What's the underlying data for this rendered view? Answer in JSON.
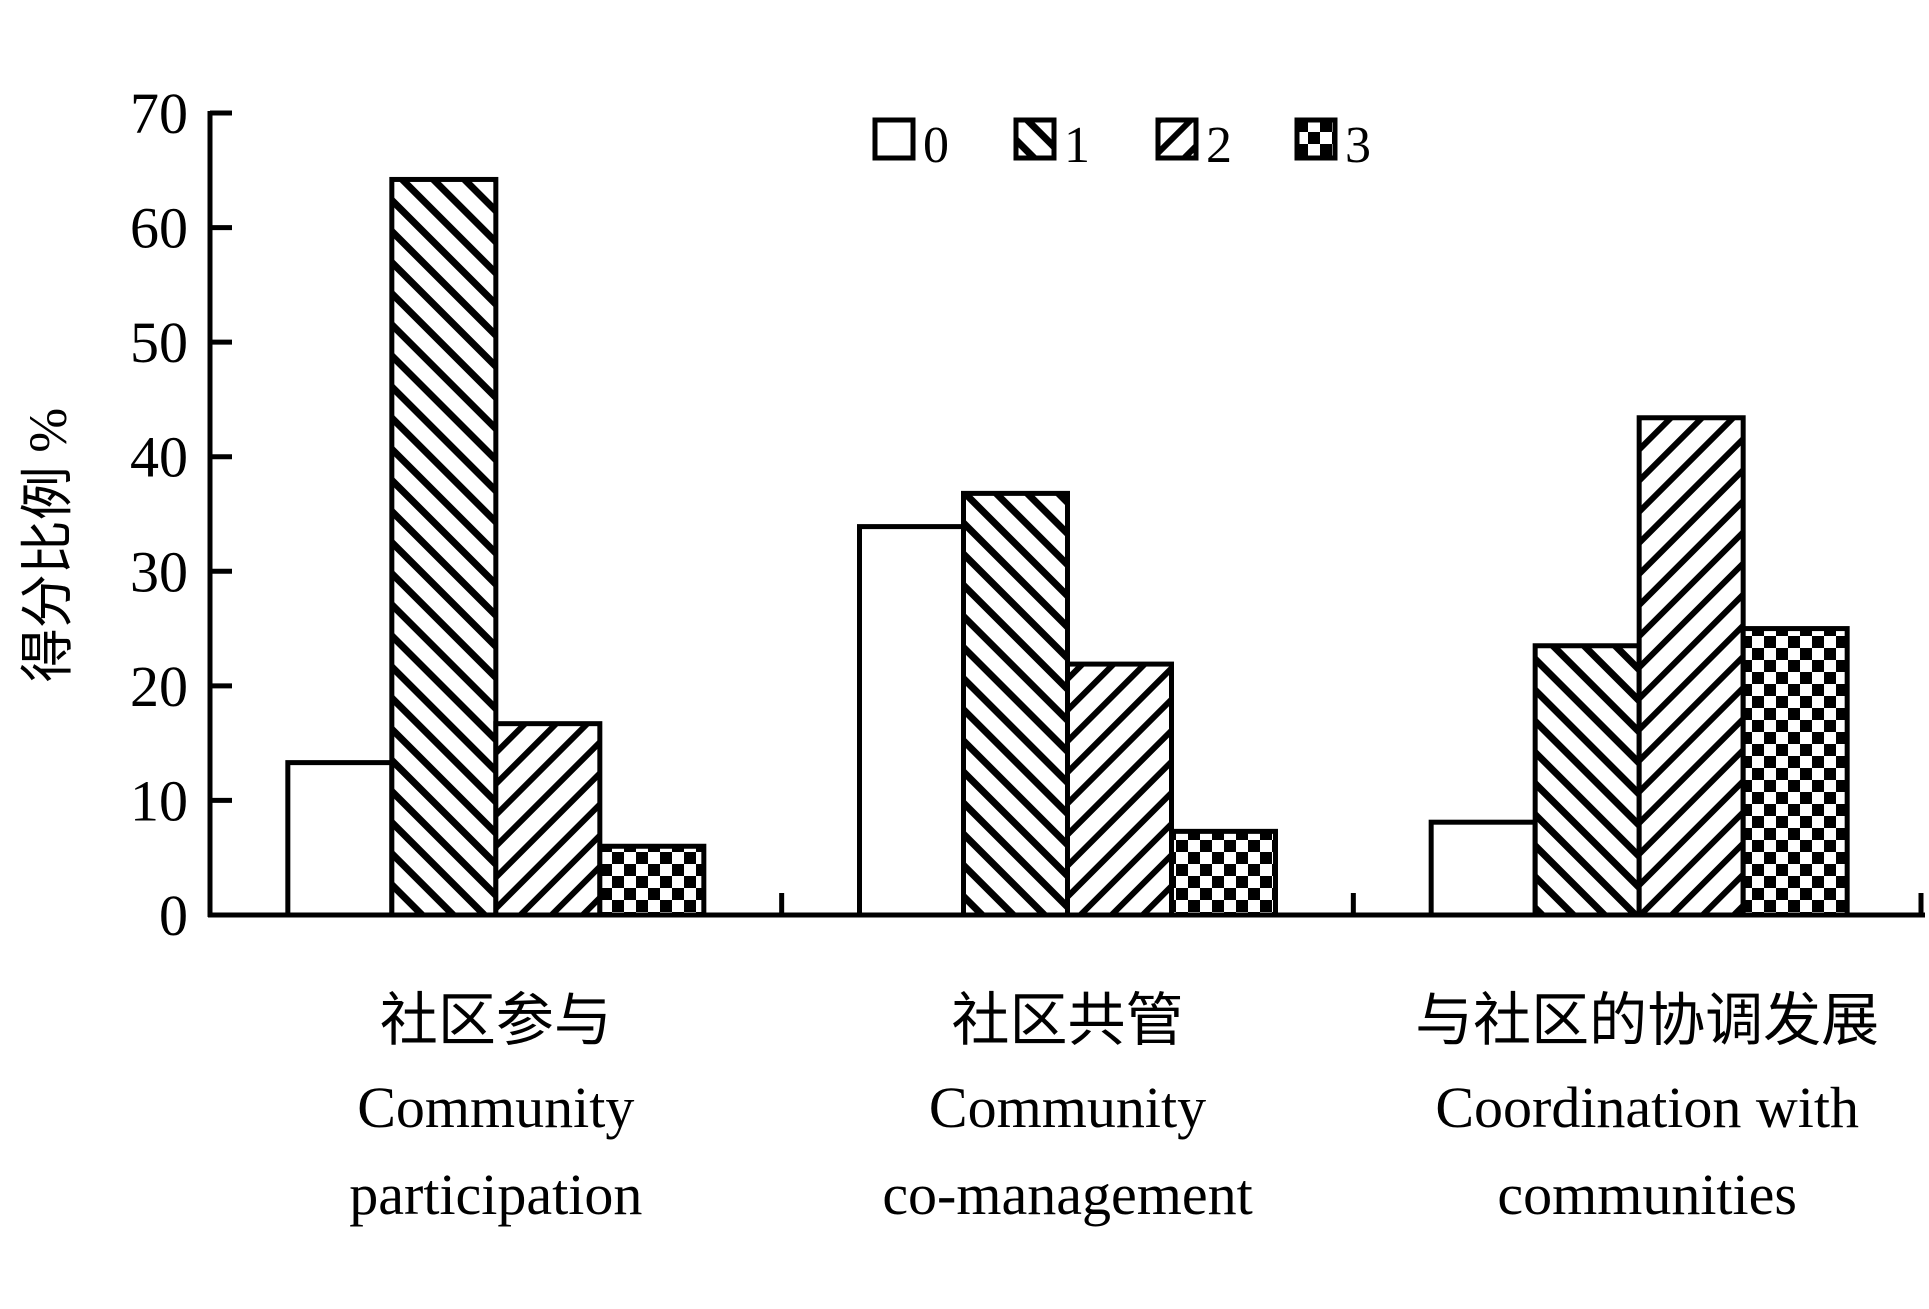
{
  "chart_data": {
    "type": "bar",
    "categories": [
      [
        "社区参与",
        "Community",
        "participation"
      ],
      [
        "社区共管",
        "Community",
        "co-management"
      ],
      [
        "与社区的协调发展",
        "Coordination with",
        "communities"
      ]
    ],
    "series": [
      {
        "name": "0",
        "values": [
          13.3,
          33.9,
          8.1
        ],
        "pattern": "none"
      },
      {
        "name": "1",
        "values": [
          64.2,
          36.8,
          23.5
        ],
        "pattern": "diag-down"
      },
      {
        "name": "2",
        "values": [
          16.7,
          21.9,
          43.4
        ],
        "pattern": "diag-up"
      },
      {
        "name": "3",
        "values": [
          6.0,
          7.3,
          25.0
        ],
        "pattern": "checker"
      }
    ],
    "ylabel": "得分比例 %",
    "xlabel": "",
    "title": "",
    "ylim": [
      0,
      70
    ],
    "yticks": [
      0,
      10,
      20,
      30,
      40,
      50,
      60,
      70
    ],
    "legend_position": "top-center",
    "grid": false,
    "colors": {
      "stroke": "#000000",
      "fill": "#ffffff"
    }
  }
}
